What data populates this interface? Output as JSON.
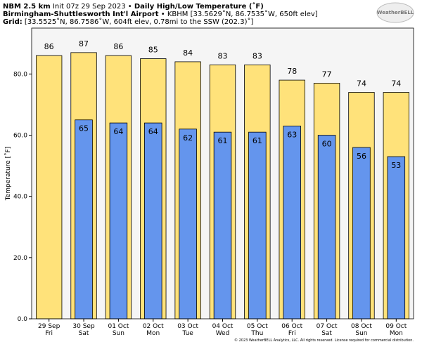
{
  "chart_data": {
    "type": "bar",
    "model": "NBM 2.5 km",
    "init": "Init 07z 29 Sep 2023 •",
    "title": "Daily High/Low Temperature (˚F)",
    "station": "Birmingham-Shuttlesworth Int'l Airport",
    "station_info": "• KBHM [33.5629˚N, 86.7535˚W, 650ft elev]",
    "grid_label": "Grid:",
    "grid_info": "[33.5525˚N, 86.7586˚W, 604ft elev, 0.78mi to the SSW (202.3)˚]",
    "logo": "WeatherBELL",
    "footer": "© 2023 WeatherBELL Analytics, LLC. All rights reserved. License required for commercial distribution.",
    "ylabel": "Temperature [˚F]",
    "categories": [
      "29 Sep",
      "30 Sep",
      "01 Oct",
      "02 Oct",
      "03 Oct",
      "04 Oct",
      "05 Oct",
      "06 Oct",
      "07 Oct",
      "08 Oct",
      "09 Oct"
    ],
    "weekdays": [
      "Fri",
      "Sat",
      "Sun",
      "Mon",
      "Tue",
      "Wed",
      "Thu",
      "Fri",
      "Sat",
      "Sun",
      "Mon"
    ],
    "series": [
      {
        "color": "#ffe27a",
        "values": [
          86,
          87,
          86,
          85,
          84,
          83,
          83,
          78,
          77,
          74,
          74
        ]
      },
      {
        "color": "#6495ed",
        "values": [
          null,
          65,
          64,
          64,
          62,
          61,
          61,
          63,
          60,
          56,
          53
        ]
      }
    ],
    "ylim": [
      0,
      95
    ],
    "yticks": [
      {
        "value": 0,
        "label": "0.0"
      },
      {
        "value": 20,
        "label": "20.0"
      },
      {
        "value": 40,
        "label": "40.0"
      },
      {
        "value": 60,
        "label": "60.0"
      },
      {
        "value": 80,
        "label": "80.0"
      }
    ]
  }
}
